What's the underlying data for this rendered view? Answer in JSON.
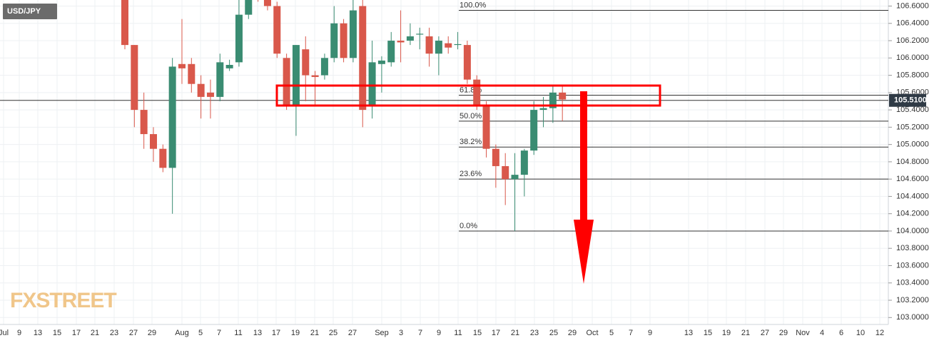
{
  "chart_data": {
    "type": "candlestick",
    "title": "USD/JPY",
    "watermark": "FXSTREET",
    "up_color": "#3a8c72",
    "down_color": "#d9584b",
    "open": [
      106.9,
      106.15,
      105.4,
      105.12,
      104.95,
      104.73,
      105.93,
      105.93,
      105.7,
      105.6,
      105.55,
      105.88,
      105.95,
      106.5,
      106.72,
      106.7,
      106.6,
      106.0,
      105.45,
      106.1,
      105.8,
      105.8,
      106.0,
      106.4,
      106.0,
      106.6,
      105.45,
      105.93,
      105.95,
      106.2,
      106.2,
      106.27,
      106.25,
      106.05,
      106.17,
      106.15,
      106.15,
      105.75,
      105.45,
      104.95,
      104.75,
      104.6,
      104.65,
      104.93,
      105.4,
      105.42,
      105.6
    ],
    "high": [
      106.9,
      106.15,
      105.6,
      105.2,
      105.0,
      106.0,
      106.45,
      106.0,
      105.8,
      105.75,
      106.05,
      105.98,
      106.7,
      106.7,
      106.7,
      106.7,
      106.65,
      106.05,
      106.15,
      106.25,
      105.85,
      106.05,
      106.6,
      106.45,
      106.7,
      106.7,
      106.2,
      106.02,
      106.3,
      106.55,
      106.4,
      106.35,
      106.35,
      106.25,
      106.25,
      106.3,
      106.2,
      105.8,
      105.5,
      105.0,
      104.9,
      104.9,
      104.95,
      105.5,
      105.55,
      105.68,
      105.68
    ],
    "low": [
      106.1,
      105.2,
      104.95,
      104.8,
      104.68,
      104.2,
      105.7,
      105.6,
      105.3,
      105.3,
      105.5,
      105.85,
      105.9,
      106.45,
      106.65,
      106.55,
      106.0,
      105.4,
      105.1,
      105.5,
      105.45,
      105.75,
      105.95,
      105.95,
      105.95,
      105.2,
      105.3,
      105.6,
      105.9,
      105.95,
      106.15,
      106.1,
      105.9,
      105.8,
      106.05,
      106.1,
      105.7,
      105.4,
      104.85,
      104.5,
      104.3,
      104.0,
      104.4,
      104.88,
      105.2,
      105.25,
      105.27
    ],
    "close": [
      106.15,
      105.4,
      105.12,
      104.95,
      104.73,
      105.9,
      105.88,
      105.7,
      105.55,
      105.55,
      105.95,
      105.92,
      106.5,
      106.7,
      106.7,
      106.6,
      106.05,
      105.45,
      106.15,
      105.8,
      105.78,
      106.0,
      106.4,
      106.0,
      106.55,
      105.4,
      105.95,
      105.97,
      106.2,
      106.18,
      106.25,
      106.28,
      106.05,
      106.2,
      106.12,
      106.16,
      105.75,
      105.45,
      104.95,
      104.75,
      104.6,
      104.65,
      104.93,
      105.4,
      105.42,
      105.6,
      105.52
    ],
    "ylim": [
      102.92,
      106.67
    ],
    "yticks": [
      {
        "value": 106.6,
        "label": "106.6000"
      },
      {
        "value": 106.4,
        "label": "106.4000"
      },
      {
        "value": 106.2,
        "label": "106.2000"
      },
      {
        "value": 106.0,
        "label": "106.0000"
      },
      {
        "value": 105.8,
        "label": "105.8000"
      },
      {
        "value": 105.6,
        "label": "105.6000"
      },
      {
        "value": 105.4,
        "label": "105.4000"
      },
      {
        "value": 105.2,
        "label": "105.2000"
      },
      {
        "value": 105.0,
        "label": "105.0000"
      },
      {
        "value": 104.8,
        "label": "104.8000"
      },
      {
        "value": 104.6,
        "label": "104.6000"
      },
      {
        "value": 104.4,
        "label": "104.4000"
      },
      {
        "value": 104.2,
        "label": "104.2000"
      },
      {
        "value": 104.0,
        "label": "104.0000"
      },
      {
        "value": 103.8,
        "label": "103.8000"
      },
      {
        "value": 103.6,
        "label": "103.6000"
      },
      {
        "value": 103.4,
        "label": "103.4000"
      },
      {
        "value": 103.2,
        "label": "103.2000"
      },
      {
        "value": 103.0,
        "label": "103.0000"
      }
    ],
    "x_labels": [
      "Jul",
      "9",
      "13",
      "15",
      "17",
      "21",
      "23",
      "27",
      "29",
      "Aug",
      "5",
      "7",
      "11",
      "13",
      "17",
      "19",
      "21",
      "25",
      "27",
      "Sep",
      "3",
      "7",
      "9",
      "11",
      "15",
      "17",
      "21",
      "23",
      "25",
      "29",
      "Oct",
      "5",
      "7",
      "9",
      "13",
      "15",
      "19",
      "21",
      "27",
      "29",
      "Nov",
      "4",
      "6",
      "10",
      "12"
    ],
    "fib_levels": [
      {
        "label": "100.0%",
        "value": 106.55
      },
      {
        "label": "61.8%",
        "value": 105.57
      },
      {
        "label": "50.0%",
        "value": 105.27
      },
      {
        "label": "38.2%",
        "value": 104.97
      },
      {
        "label": "23.6%",
        "value": 104.6
      },
      {
        "label": "0.0%",
        "value": 104.0
      }
    ],
    "last_price": {
      "value": 105.51,
      "label": "105.5100"
    },
    "grid": true
  }
}
